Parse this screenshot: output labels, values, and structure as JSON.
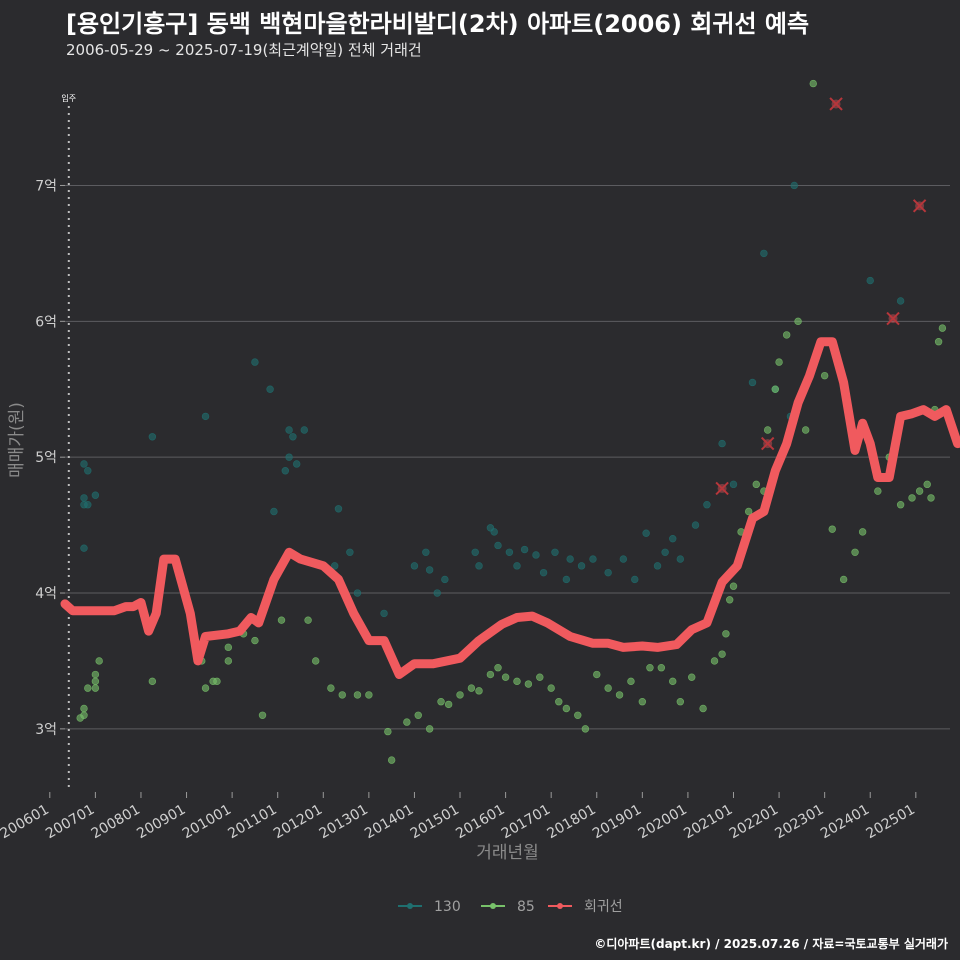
{
  "header": {
    "title": "[용인기흥구] 동백 백현마을한라비발디(2차) 아파트(2006) 회귀선 예측",
    "subtitle": "2006-05-29 ~ 2025-07-19(최근계약일) 전체 거래건"
  },
  "footer": {
    "caption": "©디아파트(dapt.kr) / 2025.07.26 / 자료=국토교통부 실거래가"
  },
  "colors": {
    "background": "#2b2b2e",
    "grid": "#5c5c60",
    "s130": "#1f6f6f",
    "s85": "#78c26a",
    "regression": "#f05a5e"
  },
  "chart_data": {
    "type": "scatter",
    "title": "[용인기흥구] 동백 백현마을한라비발디(2차) 아파트(2006) 회귀선 예측",
    "subtitle": "2006-05-29 ~ 2025-07-19(최근계약일) 전체 거래건",
    "xlabel": "거래년월",
    "ylabel": "매매가(원)",
    "xlim": [
      "2006-05",
      "2025-10"
    ],
    "ylim": [
      2.55,
      7.85
    ],
    "x_ticks": [
      "200601",
      "200701",
      "200801",
      "200901",
      "201001",
      "201101",
      "201201",
      "201301",
      "201401",
      "201501",
      "201601",
      "201701",
      "201801",
      "201901",
      "202001",
      "202101",
      "202201",
      "202301",
      "202401",
      "202501"
    ],
    "y_ticks": [
      {
        "value": 3,
        "label": "3억"
      },
      {
        "value": 4,
        "label": "4억"
      },
      {
        "value": 5,
        "label": "5억"
      },
      {
        "value": 6,
        "label": "6억"
      },
      {
        "value": 7,
        "label": "7억"
      }
    ],
    "y_unit": "억",
    "annotation": {
      "x": "2006-06",
      "label": "입주"
    },
    "legend": {
      "position": "bottom",
      "items": [
        "130",
        "85",
        "회귀선"
      ]
    },
    "series": [
      {
        "name": "130",
        "kind": "scatter",
        "points": [
          [
            "2006-10",
            4.95
          ],
          [
            "2006-10",
            4.7
          ],
          [
            "2006-10",
            4.65
          ],
          [
            "2006-11",
            4.9
          ],
          [
            "2006-11",
            4.65
          ],
          [
            "2007-01",
            4.72
          ],
          [
            "2006-10",
            4.33
          ],
          [
            "2008-04",
            5.15
          ],
          [
            "2009-06",
            5.3
          ],
          [
            "2010-07",
            5.7
          ],
          [
            "2010-11",
            5.5
          ],
          [
            "2010-12",
            4.6
          ],
          [
            "2011-04",
            5.2
          ],
          [
            "2011-05",
            5.15
          ],
          [
            "2011-04",
            5.0
          ],
          [
            "2011-03",
            4.9
          ],
          [
            "2011-06",
            4.95
          ],
          [
            "2011-08",
            5.2
          ],
          [
            "2012-04",
            4.2
          ],
          [
            "2012-05",
            4.62
          ],
          [
            "2012-08",
            4.3
          ],
          [
            "2012-10",
            4.0
          ],
          [
            "2013-05",
            3.85
          ],
          [
            "2014-01",
            4.2
          ],
          [
            "2014-04",
            4.3
          ],
          [
            "2014-05",
            4.17
          ],
          [
            "2014-07",
            4.0
          ],
          [
            "2014-09",
            4.1
          ],
          [
            "2015-05",
            4.3
          ],
          [
            "2015-06",
            4.2
          ],
          [
            "2015-09",
            4.48
          ],
          [
            "2015-10",
            4.45
          ],
          [
            "2015-11",
            4.35
          ],
          [
            "2016-02",
            4.3
          ],
          [
            "2016-04",
            4.2
          ],
          [
            "2016-06",
            4.32
          ],
          [
            "2016-09",
            4.28
          ],
          [
            "2016-11",
            4.15
          ],
          [
            "2017-02",
            4.3
          ],
          [
            "2017-05",
            4.1
          ],
          [
            "2017-06",
            4.25
          ],
          [
            "2017-09",
            4.2
          ],
          [
            "2017-12",
            4.25
          ],
          [
            "2018-04",
            4.15
          ],
          [
            "2018-08",
            4.25
          ],
          [
            "2018-11",
            4.1
          ],
          [
            "2019-02",
            4.44
          ],
          [
            "2019-05",
            4.2
          ],
          [
            "2019-07",
            4.3
          ],
          [
            "2019-09",
            4.4
          ],
          [
            "2019-11",
            4.25
          ],
          [
            "2020-03",
            4.5
          ],
          [
            "2020-06",
            4.65
          ],
          [
            "2020-10",
            5.1
          ],
          [
            "2021-01",
            4.8
          ],
          [
            "2021-06",
            5.55
          ],
          [
            "2021-09",
            6.5
          ],
          [
            "2021-12",
            5.5
          ],
          [
            "2022-04",
            5.3
          ],
          [
            "2022-05",
            7.0
          ],
          [
            "2024-01",
            6.3
          ],
          [
            "2024-09",
            6.15
          ]
        ]
      },
      {
        "name": "85",
        "kind": "scatter",
        "points": [
          [
            "2006-09",
            3.08
          ],
          [
            "2006-10",
            3.15
          ],
          [
            "2006-10",
            3.1
          ],
          [
            "2006-11",
            3.3
          ],
          [
            "2007-01",
            3.3
          ],
          [
            "2007-02",
            3.5
          ],
          [
            "2007-01",
            3.4
          ],
          [
            "2007-01",
            3.35
          ],
          [
            "2008-04",
            3.35
          ],
          [
            "2009-05",
            3.5
          ],
          [
            "2009-06",
            3.3
          ],
          [
            "2009-08",
            3.35
          ],
          [
            "2009-09",
            3.35
          ],
          [
            "2009-12",
            3.5
          ],
          [
            "2009-12",
            3.6
          ],
          [
            "2010-04",
            3.7
          ],
          [
            "2010-07",
            3.65
          ],
          [
            "2010-09",
            3.1
          ],
          [
            "2011-02",
            3.8
          ],
          [
            "2011-09",
            3.8
          ],
          [
            "2011-11",
            3.5
          ],
          [
            "2012-03",
            3.3
          ],
          [
            "2012-06",
            3.25
          ],
          [
            "2012-10",
            3.25
          ],
          [
            "2013-01",
            3.25
          ],
          [
            "2013-06",
            2.98
          ],
          [
            "2013-07",
            2.77
          ],
          [
            "2013-11",
            3.05
          ],
          [
            "2014-02",
            3.1
          ],
          [
            "2014-05",
            3.0
          ],
          [
            "2014-08",
            3.2
          ],
          [
            "2014-10",
            3.18
          ],
          [
            "2015-01",
            3.25
          ],
          [
            "2015-04",
            3.3
          ],
          [
            "2015-06",
            3.28
          ],
          [
            "2015-09",
            3.4
          ],
          [
            "2015-11",
            3.45
          ],
          [
            "2016-01",
            3.38
          ],
          [
            "2016-04",
            3.35
          ],
          [
            "2016-07",
            3.33
          ],
          [
            "2016-10",
            3.38
          ],
          [
            "2017-01",
            3.3
          ],
          [
            "2017-03",
            3.2
          ],
          [
            "2017-05",
            3.15
          ],
          [
            "2017-08",
            3.1
          ],
          [
            "2017-10",
            3.0
          ],
          [
            "2018-01",
            3.4
          ],
          [
            "2018-04",
            3.3
          ],
          [
            "2018-07",
            3.25
          ],
          [
            "2018-10",
            3.35
          ],
          [
            "2019-01",
            3.2
          ],
          [
            "2019-03",
            3.45
          ],
          [
            "2019-06",
            3.45
          ],
          [
            "2019-09",
            3.35
          ],
          [
            "2019-11",
            3.2
          ],
          [
            "2020-02",
            3.38
          ],
          [
            "2020-05",
            3.15
          ],
          [
            "2020-08",
            3.5
          ],
          [
            "2020-10",
            3.55
          ],
          [
            "2020-11",
            3.7
          ],
          [
            "2020-12",
            3.95
          ],
          [
            "2021-01",
            4.05
          ],
          [
            "2021-03",
            4.45
          ],
          [
            "2021-05",
            4.6
          ],
          [
            "2021-07",
            4.8
          ],
          [
            "2021-09",
            4.75
          ],
          [
            "2021-10",
            5.2
          ],
          [
            "2021-12",
            5.5
          ],
          [
            "2022-01",
            5.7
          ],
          [
            "2022-03",
            5.9
          ],
          [
            "2022-06",
            6.0
          ],
          [
            "2022-08",
            5.2
          ],
          [
            "2022-10",
            7.75
          ],
          [
            "2023-01",
            5.6
          ],
          [
            "2023-03",
            4.47
          ],
          [
            "2023-06",
            4.1
          ],
          [
            "2023-09",
            4.3
          ],
          [
            "2023-11",
            4.45
          ],
          [
            "2024-03",
            4.75
          ],
          [
            "2024-06",
            5.0
          ],
          [
            "2024-09",
            4.65
          ],
          [
            "2024-12",
            4.7
          ],
          [
            "2025-02",
            4.75
          ],
          [
            "2025-04",
            4.8
          ],
          [
            "2025-05",
            4.7
          ],
          [
            "2025-06",
            5.35
          ],
          [
            "2025-07",
            5.85
          ],
          [
            "2025-08",
            5.95
          ]
        ]
      },
      {
        "name": "회귀선",
        "kind": "line",
        "points": [
          [
            "2006-05",
            3.92
          ],
          [
            "2006-07",
            3.87
          ],
          [
            "2007-06",
            3.87
          ],
          [
            "2007-09",
            3.9
          ],
          [
            "2007-11",
            3.9
          ],
          [
            "2008-01",
            3.93
          ],
          [
            "2008-03",
            3.72
          ],
          [
            "2008-05",
            3.85
          ],
          [
            "2008-07",
            4.25
          ],
          [
            "2008-10",
            4.25
          ],
          [
            "2009-02",
            3.85
          ],
          [
            "2009-04",
            3.5
          ],
          [
            "2009-06",
            3.68
          ],
          [
            "2009-12",
            3.7
          ],
          [
            "2010-03",
            3.72
          ],
          [
            "2010-06",
            3.82
          ],
          [
            "2010-08",
            3.78
          ],
          [
            "2010-12",
            4.1
          ],
          [
            "2011-04",
            4.3
          ],
          [
            "2011-07",
            4.25
          ],
          [
            "2012-01",
            4.2
          ],
          [
            "2012-05",
            4.1
          ],
          [
            "2012-09",
            3.85
          ],
          [
            "2013-01",
            3.65
          ],
          [
            "2013-05",
            3.65
          ],
          [
            "2013-09",
            3.4
          ],
          [
            "2014-01",
            3.48
          ],
          [
            "2014-06",
            3.48
          ],
          [
            "2015-01",
            3.52
          ],
          [
            "2015-06",
            3.65
          ],
          [
            "2015-12",
            3.77
          ],
          [
            "2016-04",
            3.82
          ],
          [
            "2016-08",
            3.83
          ],
          [
            "2016-12",
            3.78
          ],
          [
            "2017-06",
            3.68
          ],
          [
            "2017-12",
            3.63
          ],
          [
            "2018-04",
            3.63
          ],
          [
            "2018-08",
            3.6
          ],
          [
            "2019-01",
            3.61
          ],
          [
            "2019-05",
            3.6
          ],
          [
            "2019-10",
            3.62
          ],
          [
            "2020-02",
            3.73
          ],
          [
            "2020-06",
            3.78
          ],
          [
            "2020-10",
            4.08
          ],
          [
            "2021-02",
            4.2
          ],
          [
            "2021-06",
            4.55
          ],
          [
            "2021-09",
            4.6
          ],
          [
            "2021-12",
            4.9
          ],
          [
            "2022-03",
            5.1
          ],
          [
            "2022-06",
            5.4
          ],
          [
            "2022-09",
            5.6
          ],
          [
            "2022-12",
            5.85
          ],
          [
            "2023-03",
            5.85
          ],
          [
            "2023-06",
            5.55
          ],
          [
            "2023-09",
            5.05
          ],
          [
            "2023-11",
            5.25
          ],
          [
            "2024-01",
            5.1
          ],
          [
            "2024-03",
            4.85
          ],
          [
            "2024-06",
            4.85
          ],
          [
            "2024-09",
            5.3
          ],
          [
            "2024-12",
            5.32
          ],
          [
            "2025-03",
            5.35
          ],
          [
            "2025-06",
            5.3
          ],
          [
            "2025-09",
            5.35
          ],
          [
            "2025-12",
            5.1
          ],
          [
            "2026-03",
            5.12
          ],
          [
            "2026-06",
            5.15
          ]
        ]
      }
    ],
    "outlier_markers": [
      [
        "2020-10",
        4.77
      ],
      [
        "2021-10",
        5.1
      ],
      [
        "2023-04",
        7.6
      ],
      [
        "2024-07",
        6.02
      ],
      [
        "2025-02",
        6.85
      ]
    ]
  }
}
